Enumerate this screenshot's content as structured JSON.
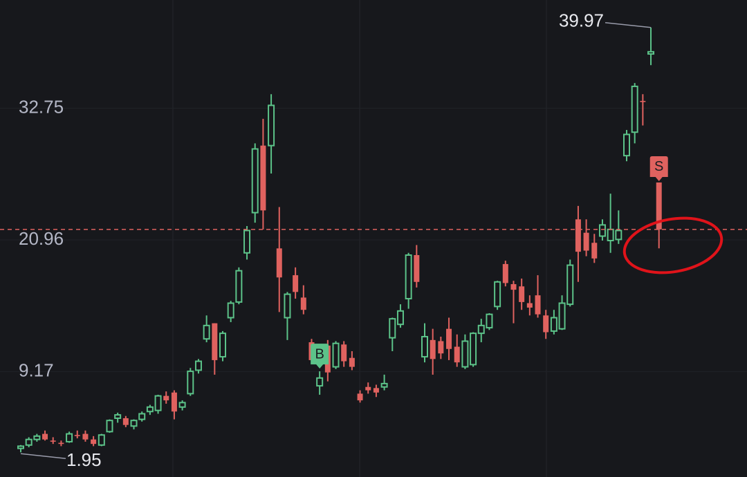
{
  "chart_data": {
    "type": "candlestick",
    "ylim": [
      -0.26,
      42.43
    ],
    "yticks": [
      9.17,
      20.96,
      32.75
    ],
    "grid": true,
    "up_color": "#5cc389",
    "down_color": "#e0625f",
    "candles": [
      [
        2.3,
        2.6,
        1.95,
        2.5
      ],
      [
        2.6,
        3.3,
        2.4,
        3.1
      ],
      [
        3.1,
        3.6,
        2.9,
        3.4
      ],
      [
        3.6,
        3.9,
        3.0,
        3.1
      ],
      [
        3.0,
        3.3,
        2.7,
        2.9
      ],
      [
        2.8,
        3.0,
        2.5,
        2.7
      ],
      [
        2.9,
        3.8,
        2.8,
        3.6
      ],
      [
        3.5,
        3.9,
        3.2,
        3.4
      ],
      [
        3.6,
        3.9,
        2.9,
        3.1
      ],
      [
        3.1,
        3.4,
        2.5,
        2.7
      ],
      [
        2.6,
        3.6,
        2.5,
        3.5
      ],
      [
        3.8,
        4.9,
        3.7,
        4.8
      ],
      [
        5.0,
        5.5,
        4.6,
        5.3
      ],
      [
        5.0,
        5.2,
        4.2,
        4.4
      ],
      [
        4.3,
        4.9,
        4.0,
        4.8
      ],
      [
        4.9,
        5.6,
        4.7,
        5.4
      ],
      [
        5.6,
        6.2,
        5.3,
        6.0
      ],
      [
        5.7,
        7.1,
        5.4,
        7.0
      ],
      [
        7.0,
        7.4,
        6.3,
        6.6
      ],
      [
        7.3,
        7.5,
        4.9,
        5.6
      ],
      [
        6.0,
        6.6,
        5.7,
        6.4
      ],
      [
        7.2,
        9.5,
        7.0,
        9.2
      ],
      [
        9.3,
        10.3,
        9.0,
        10.1
      ],
      [
        12.1,
        14.2,
        11.8,
        13.3
      ],
      [
        13.5,
        13.5,
        8.9,
        10.2
      ],
      [
        10.5,
        12.8,
        10.1,
        12.6
      ],
      [
        14.0,
        15.5,
        13.6,
        15.3
      ],
      [
        15.4,
        18.5,
        15.2,
        18.2
      ],
      [
        19.8,
        22.2,
        19.2,
        21.8
      ],
      [
        23.4,
        29.6,
        22.5,
        29.1
      ],
      [
        29.4,
        31.8,
        21.9,
        23.6
      ],
      [
        29.4,
        34.0,
        26.9,
        33.0
      ],
      [
        20.2,
        23.9,
        14.5,
        17.6
      ],
      [
        14.0,
        16.3,
        12.0,
        16.1
      ],
      [
        17.8,
        18.5,
        15.7,
        16.3
      ],
      [
        15.8,
        16.9,
        14.3,
        14.7
      ],
      [
        11.8,
        12.1,
        9.9,
        10.2
      ],
      [
        7.9,
        9.2,
        7.1,
        8.6
      ],
      [
        11.5,
        12.0,
        8.3,
        9.1
      ],
      [
        9.6,
        11.9,
        9.4,
        11.7
      ],
      [
        11.6,
        11.9,
        9.6,
        10.1
      ],
      [
        10.4,
        11.0,
        9.3,
        9.6
      ],
      [
        7.2,
        7.5,
        6.4,
        6.6
      ],
      [
        7.8,
        8.2,
        7.2,
        7.5
      ],
      [
        7.7,
        8.0,
        6.9,
        7.3
      ],
      [
        7.8,
        8.9,
        7.5,
        8.1
      ],
      [
        12.2,
        14.0,
        11.0,
        13.9
      ],
      [
        13.4,
        15.2,
        13.1,
        14.6
      ],
      [
        15.7,
        19.8,
        14.8,
        19.6
      ],
      [
        19.6,
        20.5,
        16.7,
        17.2
      ],
      [
        10.5,
        13.5,
        10.0,
        12.3
      ],
      [
        12.0,
        13.0,
        8.9,
        10.3
      ],
      [
        11.9,
        12.3,
        10.3,
        10.8
      ],
      [
        13.0,
        14.0,
        10.2,
        11.2
      ],
      [
        11.4,
        12.5,
        9.6,
        10.0
      ],
      [
        9.6,
        12.5,
        9.4,
        11.9
      ],
      [
        9.8,
        12.7,
        9.6,
        12.6
      ],
      [
        12.6,
        13.9,
        11.8,
        13.3
      ],
      [
        13.1,
        14.4,
        12.9,
        14.3
      ],
      [
        15.0,
        17.3,
        14.7,
        17.2
      ],
      [
        18.8,
        19.1,
        16.8,
        17.1
      ],
      [
        17.0,
        17.3,
        13.5,
        16.5
      ],
      [
        16.8,
        17.5,
        14.7,
        15.4
      ],
      [
        15.3,
        16.0,
        14.2,
        14.9
      ],
      [
        16.0,
        17.8,
        14.0,
        14.3
      ],
      [
        14.2,
        14.7,
        12.1,
        12.7
      ],
      [
        12.8,
        14.7,
        12.5,
        14.0
      ],
      [
        13.0,
        16.0,
        12.9,
        15.3
      ],
      [
        15.2,
        19.2,
        15.0,
        18.7
      ],
      [
        22.8,
        24.0,
        17.2,
        19.9
      ],
      [
        21.6,
        22.8,
        19.5,
        20.0
      ],
      [
        20.7,
        21.5,
        18.9,
        19.3
      ],
      [
        21.3,
        22.8,
        20.9,
        22.3
      ],
      [
        20.9,
        25.1,
        19.8,
        21.9
      ],
      [
        21.0,
        23.6,
        20.6,
        21.8
      ],
      [
        28.5,
        30.8,
        28.0,
        30.4
      ],
      [
        30.6,
        35.0,
        29.6,
        34.7
      ],
      [
        33.4,
        34.0,
        31.2,
        33.3
      ],
      [
        37.6,
        39.97,
        36.6,
        37.8
      ],
      [
        26.1,
        26.1,
        20.2,
        21.9
      ]
    ],
    "max": {
      "value": 39.97,
      "label": "39.97"
    },
    "min": {
      "value": 1.95,
      "label": "1.95"
    },
    "markers": [
      {
        "label": "B",
        "candle": 37
      },
      {
        "label": "S",
        "candle": 79
      }
    ]
  }
}
